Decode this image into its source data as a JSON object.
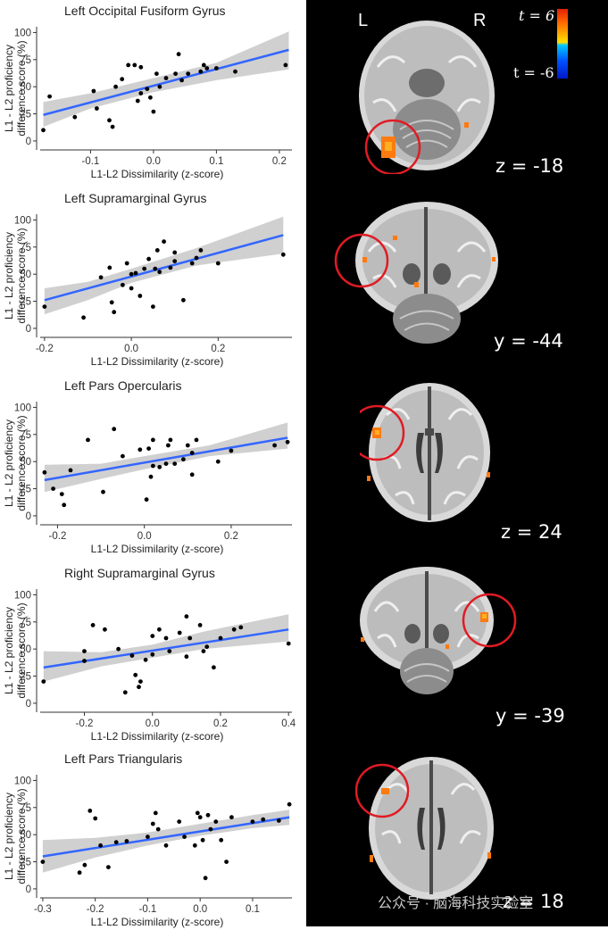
{
  "chart_data": [
    {
      "type": "scatter",
      "title": "Left Occipital Fusiform Gyrus",
      "xlabel": "L1-L2 Dissimilarity (z-score)",
      "ylabel": [
        "L1 - L2 proficiency",
        "difference score (%)"
      ],
      "xlim": [
        -0.18,
        0.22
      ],
      "ylim": [
        -5,
        102
      ],
      "xticks": [
        -0.1,
        0.0,
        0.1,
        0.2
      ],
      "xtick_labels": [
        "-0.1",
        "0.0",
        "0.1",
        "0.2"
      ],
      "yticks": [
        0,
        25,
        50,
        75,
        100
      ],
      "ytick_labels": [
        "0",
        "25",
        "50",
        "75",
        "100"
      ],
      "fit": {
        "x": [
          -0.175,
          0.215
        ],
        "y": [
          24,
          84
        ]
      },
      "ci": {
        "x": [
          -0.175,
          -0.1,
          0,
          0.1,
          0.215
        ],
        "lower": [
          13,
          30,
          45,
          56,
          66
        ],
        "upper": [
          36,
          44,
          58,
          72,
          101
        ]
      },
      "points": [
        [
          -0.175,
          10
        ],
        [
          -0.165,
          41
        ],
        [
          -0.125,
          22
        ],
        [
          -0.095,
          46
        ],
        [
          -0.09,
          30
        ],
        [
          -0.07,
          19
        ],
        [
          -0.065,
          13
        ],
        [
          -0.06,
          50
        ],
        [
          -0.05,
          57
        ],
        [
          -0.04,
          70
        ],
        [
          -0.03,
          70
        ],
        [
          -0.025,
          37
        ],
        [
          -0.02,
          68
        ],
        [
          -0.02,
          44
        ],
        [
          -0.01,
          48
        ],
        [
          -0.005,
          40
        ],
        [
          0.0,
          27
        ],
        [
          0.005,
          62
        ],
        [
          0.01,
          50
        ],
        [
          0.02,
          58
        ],
        [
          0.035,
          62
        ],
        [
          0.045,
          56
        ],
        [
          0.04,
          80
        ],
        [
          0.055,
          62
        ],
        [
          0.075,
          64
        ],
        [
          0.08,
          70
        ],
        [
          0.085,
          67
        ],
        [
          0.1,
          67
        ],
        [
          0.13,
          64
        ],
        [
          0.21,
          70
        ]
      ]
    },
    {
      "type": "scatter",
      "title": "Left Supramarginal Gyrus",
      "xlabel": "L1-L2 Dissimilarity (z-score)",
      "ylabel": [
        "L1 - L2 proficiency",
        "difference score (%)"
      ],
      "xlim": [
        -0.21,
        0.37
      ],
      "ylim": [
        -5,
        102
      ],
      "xticks": [
        -0.2,
        0.0,
        0.2
      ],
      "xtick_labels": [
        "-0.2",
        "0.0",
        "0.2"
      ],
      "yticks": [
        0,
        25,
        50,
        75,
        100
      ],
      "ytick_labels": [
        "0",
        "25",
        "50",
        "75",
        "100"
      ],
      "fit": {
        "x": [
          -0.2,
          0.35
        ],
        "y": [
          26,
          86
        ]
      },
      "ci": {
        "x": [
          -0.2,
          -0.1,
          0,
          0.15,
          0.35
        ],
        "lower": [
          13,
          26,
          42,
          58,
          69
        ],
        "upper": [
          37,
          43,
          55,
          74,
          103
        ]
      },
      "points": [
        [
          -0.2,
          20
        ],
        [
          -0.11,
          10
        ],
        [
          -0.07,
          47
        ],
        [
          -0.05,
          56
        ],
        [
          -0.045,
          24
        ],
        [
          -0.04,
          15
        ],
        [
          -0.02,
          40
        ],
        [
          -0.01,
          60
        ],
        [
          0.0,
          37
        ],
        [
          0.0,
          50
        ],
        [
          0.01,
          51
        ],
        [
          0.02,
          30
        ],
        [
          0.03,
          55
        ],
        [
          0.04,
          64
        ],
        [
          0.05,
          20
        ],
        [
          0.055,
          55
        ],
        [
          0.06,
          72
        ],
        [
          0.065,
          52
        ],
        [
          0.075,
          80
        ],
        [
          0.09,
          56
        ],
        [
          0.1,
          62
        ],
        [
          0.1,
          70
        ],
        [
          0.12,
          26
        ],
        [
          0.14,
          60
        ],
        [
          0.15,
          65
        ],
        [
          0.16,
          72
        ],
        [
          0.2,
          60
        ],
        [
          0.35,
          68
        ]
      ]
    },
    {
      "type": "scatter",
      "title": "Left Pars Opercularis",
      "xlabel": "L1-L2 Dissimilarity (z-score)",
      "ylabel": [
        "L1 - L2 proficiency",
        "difference score (%)"
      ],
      "xlim": [
        -0.24,
        0.34
      ],
      "ylim": [
        -5,
        102
      ],
      "xticks": [
        -0.2,
        0.0,
        0.2
      ],
      "xtick_labels": [
        "-0.2",
        "0.0",
        "0.2"
      ],
      "yticks": [
        0,
        25,
        50,
        75,
        100
      ],
      "ytick_labels": [
        "0",
        "25",
        "50",
        "75",
        "100"
      ],
      "fit": {
        "x": [
          -0.23,
          0.33
        ],
        "y": [
          33,
          72
        ]
      },
      "ci": {
        "x": [
          -0.23,
          -0.1,
          0,
          0.15,
          0.33
        ],
        "lower": [
          22,
          34,
          43,
          55,
          62
        ],
        "upper": [
          47,
          48,
          55,
          65,
          86
        ]
      },
      "points": [
        [
          -0.23,
          40
        ],
        [
          -0.21,
          25
        ],
        [
          -0.19,
          20
        ],
        [
          -0.185,
          10
        ],
        [
          -0.17,
          42
        ],
        [
          -0.13,
          70
        ],
        [
          -0.095,
          22
        ],
        [
          -0.07,
          80
        ],
        [
          -0.05,
          55
        ],
        [
          -0.01,
          61
        ],
        [
          0.005,
          15
        ],
        [
          0.01,
          62
        ],
        [
          0.015,
          36
        ],
        [
          0.02,
          70
        ],
        [
          0.02,
          46
        ],
        [
          0.035,
          45
        ],
        [
          0.05,
          48
        ],
        [
          0.055,
          65
        ],
        [
          0.06,
          70
        ],
        [
          0.07,
          48
        ],
        [
          0.09,
          52
        ],
        [
          0.1,
          65
        ],
        [
          0.11,
          58
        ],
        [
          0.11,
          38
        ],
        [
          0.12,
          70
        ],
        [
          0.17,
          50
        ],
        [
          0.2,
          60
        ],
        [
          0.3,
          65
        ],
        [
          0.33,
          68
        ]
      ]
    },
    {
      "type": "scatter",
      "title": "Right Supramarginal Gyrus",
      "xlabel": "L1-L2 Dissimilarity (z-score)",
      "ylabel": [
        "L1 - L2 proficiency",
        "difference score (%)"
      ],
      "xlim": [
        -0.33,
        0.41
      ],
      "ylim": [
        -5,
        102
      ],
      "xticks": [
        -0.2,
        0.0,
        0.2,
        0.4
      ],
      "xtick_labels": [
        "-0.2",
        "0.0",
        "0.2",
        "0.4"
      ],
      "yticks": [
        0,
        25,
        50,
        75,
        100
      ],
      "ytick_labels": [
        "0",
        "25",
        "50",
        "75",
        "100"
      ],
      "fit": {
        "x": [
          -0.32,
          0.4
        ],
        "y": [
          33,
          68
        ]
      },
      "ci": {
        "x": [
          -0.32,
          -0.15,
          0,
          0.15,
          0.4
        ],
        "lower": [
          20,
          34,
          42,
          50,
          57
        ],
        "upper": [
          48,
          47,
          54,
          66,
          82
        ]
      },
      "points": [
        [
          -0.32,
          20
        ],
        [
          -0.2,
          48
        ],
        [
          -0.2,
          39
        ],
        [
          -0.175,
          72
        ],
        [
          -0.14,
          68
        ],
        [
          -0.1,
          50
        ],
        [
          -0.08,
          10
        ],
        [
          -0.06,
          44
        ],
        [
          -0.05,
          26
        ],
        [
          -0.04,
          15
        ],
        [
          -0.035,
          20
        ],
        [
          -0.02,
          40
        ],
        [
          0.0,
          62
        ],
        [
          0.0,
          45
        ],
        [
          0.02,
          68
        ],
        [
          0.04,
          60
        ],
        [
          0.05,
          48
        ],
        [
          0.08,
          65
        ],
        [
          0.1,
          80
        ],
        [
          0.1,
          43
        ],
        [
          0.11,
          60
        ],
        [
          0.14,
          72
        ],
        [
          0.15,
          48
        ],
        [
          0.16,
          52
        ],
        [
          0.18,
          33
        ],
        [
          0.2,
          60
        ],
        [
          0.24,
          68
        ],
        [
          0.26,
          70
        ],
        [
          0.4,
          55
        ]
      ]
    },
    {
      "type": "scatter",
      "title": "Left Pars Triangularis",
      "xlabel": "L1-L2 Dissimilarity (z-score)",
      "ylabel": [
        "L1 - L2 proficiency",
        "difference score (%)"
      ],
      "xlim": [
        -0.305,
        0.175
      ],
      "ylim": [
        -5,
        102
      ],
      "xticks": [
        -0.3,
        -0.2,
        -0.1,
        0.0,
        0.1
      ],
      "xtick_labels": [
        "-0.3",
        "-0.2",
        "-0.1",
        "0.0",
        "0.1"
      ],
      "yticks": [
        0,
        25,
        50,
        75,
        100
      ],
      "ytick_labels": [
        "0",
        "25",
        "50",
        "75",
        "100"
      ],
      "fit": {
        "x": [
          -0.3,
          0.17
        ],
        "y": [
          30,
          66
        ]
      },
      "ci": {
        "x": [
          -0.3,
          -0.2,
          -0.1,
          0,
          0.1,
          0.17
        ],
        "lower": [
          15,
          29,
          40,
          49,
          56,
          59
        ],
        "upper": [
          45,
          47,
          52,
          60,
          68,
          73
        ]
      },
      "points": [
        [
          -0.3,
          25
        ],
        [
          -0.23,
          15
        ],
        [
          -0.22,
          22
        ],
        [
          -0.21,
          72
        ],
        [
          -0.2,
          65
        ],
        [
          -0.19,
          40
        ],
        [
          -0.175,
          20
        ],
        [
          -0.16,
          43
        ],
        [
          -0.14,
          44
        ],
        [
          -0.1,
          48
        ],
        [
          -0.09,
          60
        ],
        [
          -0.085,
          70
        ],
        [
          -0.08,
          55
        ],
        [
          -0.065,
          40
        ],
        [
          -0.04,
          62
        ],
        [
          -0.03,
          48
        ],
        [
          -0.01,
          40
        ],
        [
          -0.005,
          70
        ],
        [
          0.0,
          66
        ],
        [
          0.005,
          45
        ],
        [
          0.01,
          10
        ],
        [
          0.015,
          68
        ],
        [
          0.02,
          55
        ],
        [
          0.03,
          62
        ],
        [
          0.04,
          45
        ],
        [
          0.05,
          25
        ],
        [
          0.06,
          66
        ],
        [
          0.1,
          62
        ],
        [
          0.12,
          64
        ],
        [
          0.15,
          63
        ],
        [
          0.17,
          78
        ]
      ]
    }
  ],
  "brain_panel": {
    "orientation_left": "L",
    "orientation_right": "R",
    "colorbar": {
      "max_label": "t = 6",
      "min_label": "t = -6",
      "colors": [
        "#e02000",
        "#ff6a00",
        "#ffb400",
        "#ffe000",
        "#00c8ff",
        "#0050ff",
        "#0018c8"
      ]
    },
    "slices": [
      "z = -18",
      "y = -44",
      "z = 24",
      "y = -39",
      "z = 18"
    ],
    "circle_color": "#e01b24"
  },
  "watermark": "公众号 · 脑海科技实验室",
  "colors": {
    "fit_line": "#3366ff",
    "ci_band": "#c8c8c8",
    "points": "#000000",
    "background_left": "#ffffff",
    "background_right": "#000000"
  }
}
